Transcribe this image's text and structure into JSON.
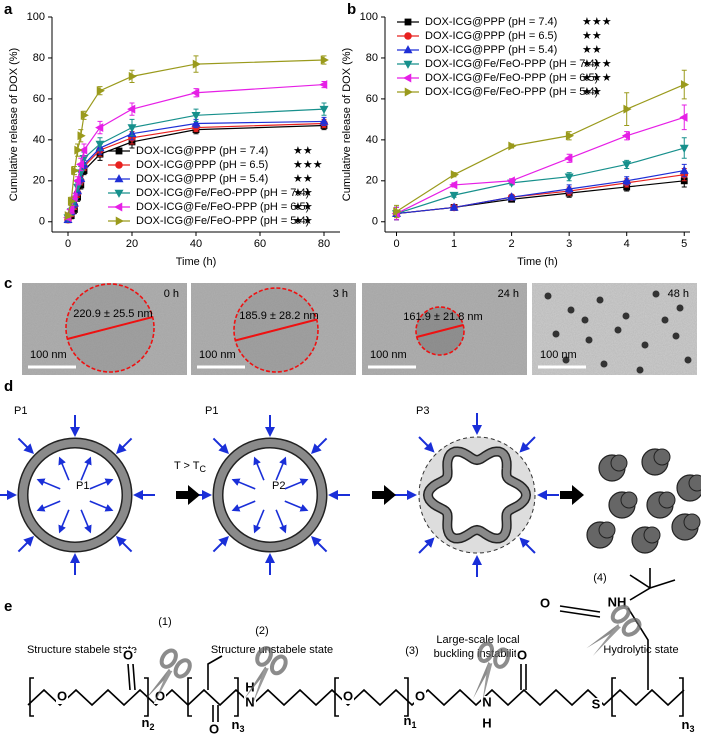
{
  "panel_labels": [
    "a",
    "b",
    "c",
    "d",
    "e"
  ],
  "chart_data": [
    {
      "type": "line",
      "xlabel": "Time (h)",
      "ylabel": "Cumulative release of DOX (%)",
      "x": [
        0,
        1,
        2,
        3,
        4,
        5,
        10,
        20,
        40,
        80
      ],
      "xlim": [
        -5,
        85
      ],
      "xticks": [
        0,
        20,
        40,
        60,
        80
      ],
      "ylim": [
        -5,
        100
      ],
      "yticks": [
        0,
        20,
        40,
        60,
        80,
        100
      ],
      "legend": "lower right",
      "series": [
        {
          "name": "DOX-ICG@PPP (pH = 7.4)",
          "significance": "★★",
          "color": "#000000",
          "marker": "square",
          "values": [
            1,
            3,
            6,
            12,
            18,
            25,
            33,
            39,
            45,
            47
          ],
          "errors": [
            1,
            1.5,
            2,
            2,
            2,
            2,
            3,
            3,
            2,
            2
          ]
        },
        {
          "name": "DOX-ICG@PPP (pH = 6.5)",
          "significance": "★★★",
          "color": "#e8211f",
          "marker": "circle",
          "values": [
            1,
            4,
            8,
            14,
            20,
            27,
            35,
            41,
            46,
            48
          ],
          "errors": [
            1,
            1.5,
            2,
            2,
            2,
            2,
            3,
            3,
            2,
            2
          ]
        },
        {
          "name": "DOX-ICG@PPP (pH = 5.4)",
          "significance": "★★",
          "color": "#1f2fd6",
          "marker": "triangle-up",
          "values": [
            1,
            5,
            9,
            15,
            21,
            28,
            36,
            43,
            48,
            49
          ],
          "errors": [
            1,
            1.5,
            2,
            2,
            2,
            2,
            3,
            3,
            2,
            2
          ]
        },
        {
          "name": "DOX-ICG@Fe/FeO-PPP (pH = 7.4)",
          "significance": "★★",
          "color": "#17908c",
          "marker": "triangle-down",
          "values": [
            2,
            5,
            10,
            17,
            24,
            31,
            38,
            46,
            52,
            55
          ],
          "errors": [
            1,
            2,
            2,
            2,
            3,
            3,
            3,
            4,
            3,
            3
          ]
        },
        {
          "name": "DOX-ICG@Fe/FeO-PPP (pH = 6.5)",
          "significance": "★★",
          "color": "#e61fe6",
          "marker": "triangle-left",
          "values": [
            2,
            6,
            12,
            20,
            28,
            35,
            46,
            55,
            63,
            67
          ],
          "errors": [
            1,
            2,
            2,
            2,
            3,
            3,
            3,
            3,
            2,
            1.5
          ]
        },
        {
          "name": "DOX-ICG@Fe/FeO-PPP (pH = 5.4)",
          "significance": "★★",
          "color": "#9a9a1c",
          "marker": "triangle-right",
          "values": [
            3,
            10,
            25,
            35,
            42,
            52,
            64,
            71,
            77,
            79
          ],
          "errors": [
            1,
            2,
            2,
            3,
            3,
            2,
            2,
            3,
            4,
            2
          ]
        }
      ]
    },
    {
      "type": "line",
      "xlabel": "Time (h)",
      "ylabel": "Cumulative release of DOX (%)",
      "x": [
        0,
        1,
        2,
        3,
        4,
        5
      ],
      "xlim": [
        -0.2,
        5.1
      ],
      "xticks": [
        0,
        1,
        2,
        3,
        4,
        5
      ],
      "ylim": [
        -5,
        100
      ],
      "yticks": [
        0,
        20,
        40,
        60,
        80,
        100
      ],
      "legend": "upper left",
      "series": [
        {
          "name": "DOX-ICG@PPP (pH = 7.4)",
          "significance": "★★★",
          "color": "#000000",
          "marker": "square",
          "values": [
            4,
            7,
            11,
            14,
            17,
            20
          ],
          "errors": [
            3,
            1,
            1,
            2,
            2,
            3
          ]
        },
        {
          "name": "DOX-ICG@PPP (pH = 6.5)",
          "significance": "★★",
          "color": "#e8211f",
          "marker": "circle",
          "values": [
            4,
            7,
            12,
            15,
            19,
            23
          ],
          "errors": [
            3,
            1,
            1,
            2,
            2,
            3
          ]
        },
        {
          "name": "DOX-ICG@PPP (pH = 5.4)",
          "significance": "★★",
          "color": "#1f2fd6",
          "marker": "triangle-up",
          "values": [
            4,
            7,
            12,
            16,
            20,
            25
          ],
          "errors": [
            3,
            1,
            1,
            2,
            2,
            3
          ]
        },
        {
          "name": "DOX-ICG@Fe/FeO-PPP (pH = 7.4)",
          "significance": "★★★",
          "color": "#17908c",
          "marker": "triangle-down",
          "values": [
            4,
            13,
            19,
            22,
            28,
            36
          ],
          "errors": [
            3,
            1,
            1,
            2,
            2,
            5
          ]
        },
        {
          "name": "DOX-ICG@Fe/FeO-PPP (pH = 6.5)",
          "significance": "★★★",
          "color": "#e61fe6",
          "marker": "triangle-left",
          "values": [
            4,
            18,
            20,
            31,
            42,
            51
          ],
          "errors": [
            3,
            1,
            1,
            2,
            2,
            6
          ]
        },
        {
          "name": "DOX-ICG@Fe/FeO-PPP (pH = 5.4)",
          "significance": "★★",
          "color": "#9a9a1c",
          "marker": "triangle-right",
          "values": [
            5,
            23,
            37,
            42,
            55,
            67
          ],
          "errors": [
            3,
            1,
            1,
            2,
            8,
            7
          ]
        }
      ]
    }
  ],
  "micrographs": [
    {
      "time": "0 h",
      "size": "220.9 ± 25.5 nm",
      "scale": "100 nm"
    },
    {
      "time": "3 h",
      "size": "185.9 ± 28.2 nm",
      "scale": "100 nm"
    },
    {
      "time": "24 h",
      "size": "161.9 ± 21.8 nm",
      "scale": "100 nm"
    },
    {
      "time": "48 h",
      "scale": "100 nm"
    }
  ],
  "diagram": {
    "pressures": [
      "P1",
      "P1",
      "P1",
      "P2",
      "P3"
    ],
    "transition": {
      "base": "T > T",
      "sub": "C"
    },
    "states": [
      [
        "Structure stabele state"
      ],
      [
        "Structure unstabele state"
      ],
      [
        "Large-scale local",
        "buckling instability"
      ],
      [
        "Hydrolytic state"
      ]
    ]
  },
  "structure": {
    "cleavage_sites": [
      "(1)",
      "(2)",
      "(3)",
      "(4)"
    ],
    "atoms": [
      "O",
      "O",
      {
        "base": "n",
        "sub": "2"
      },
      "O",
      "O",
      "N",
      "H",
      {
        "base": "n",
        "sub": "3"
      },
      "O",
      {
        "base": "n",
        "sub": "1"
      },
      "O",
      "N",
      "H",
      "O",
      "S",
      {
        "base": "n",
        "sub": "3"
      },
      "O",
      "NH"
    ]
  }
}
